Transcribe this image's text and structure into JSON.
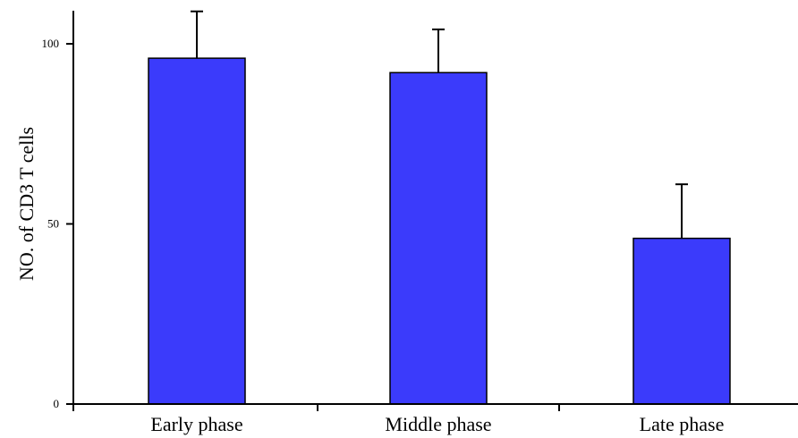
{
  "chart_data": {
    "type": "bar",
    "categories": [
      "Early phase",
      "Middle phase",
      "Late phase"
    ],
    "values": [
      96,
      92,
      46
    ],
    "error_upper": [
      109,
      104,
      61
    ],
    "title": "",
    "xlabel": "",
    "ylabel": "NO. of CD3 T cells",
    "ylim": [
      0,
      108
    ],
    "yticks": [
      0,
      50,
      100
    ],
    "ytick_labels": [
      "0",
      "50",
      "100"
    ],
    "grid": false,
    "legend": false,
    "bar_color": "#3b3bfb",
    "bar_edge_color": "#000000"
  }
}
